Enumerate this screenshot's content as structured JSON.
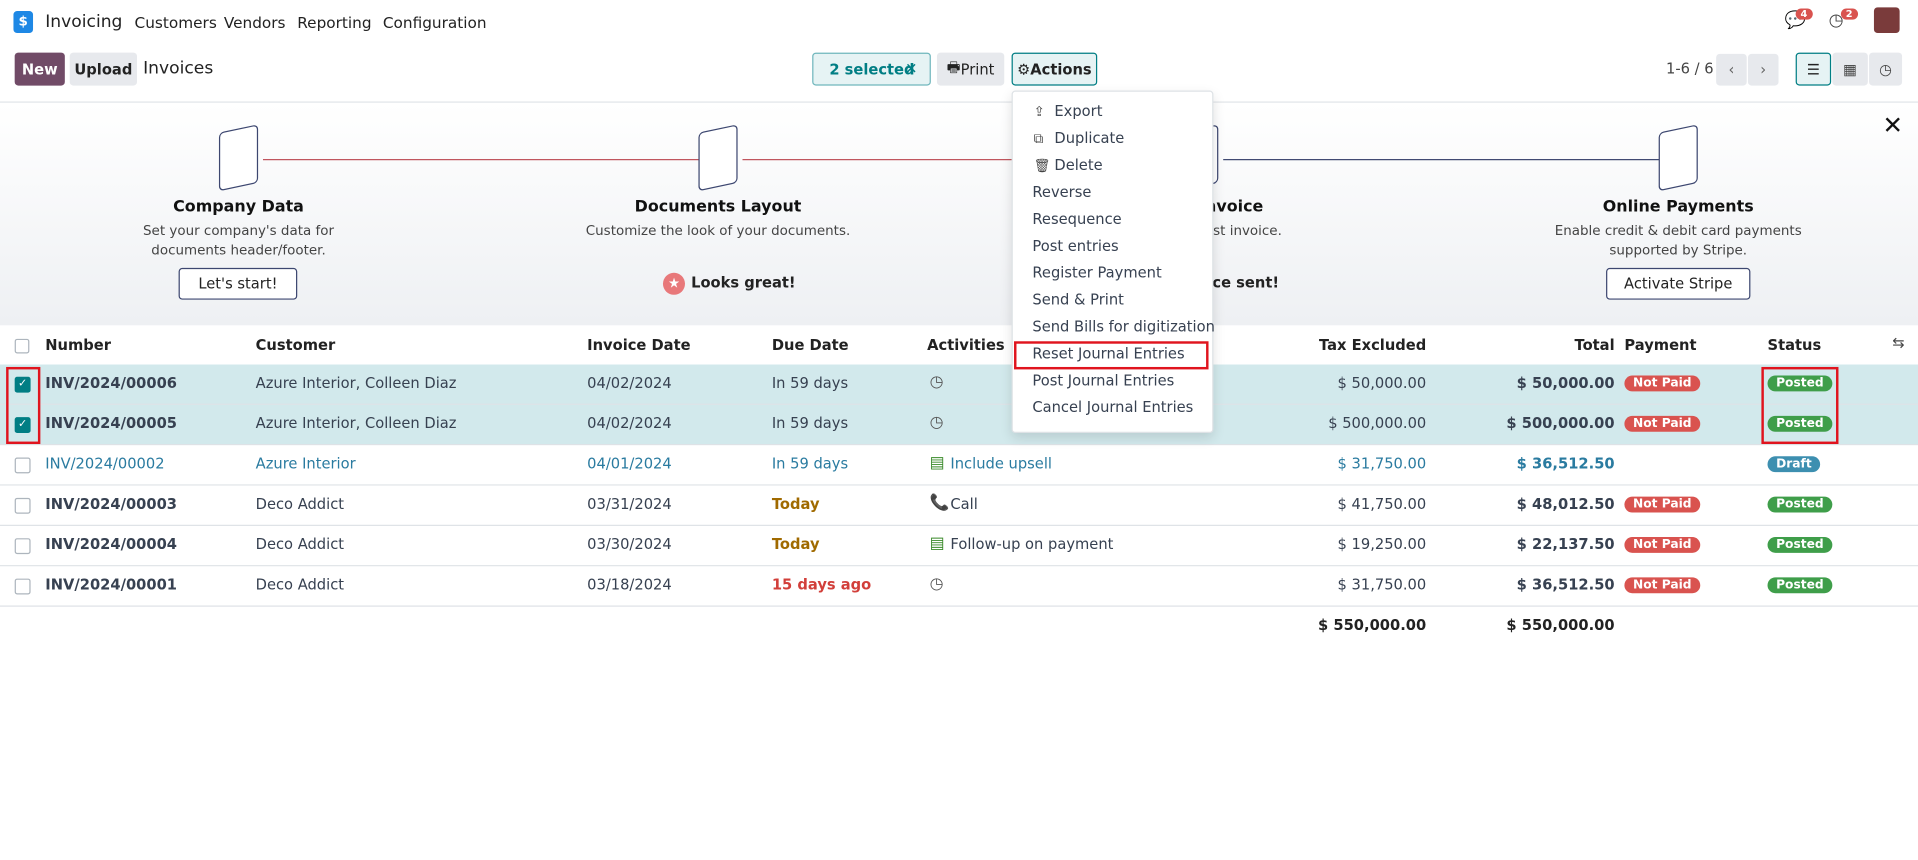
{
  "navbar": {
    "app": "Invoicing",
    "menus": [
      "Customers",
      "Vendors",
      "Reporting",
      "Configuration"
    ],
    "chat_badge": "4",
    "activity_badge": "2"
  },
  "control": {
    "new": "New",
    "upload": "Upload",
    "breadcrumb": "Invoices",
    "selected": "2 selected",
    "print": "Print",
    "actions": "Actions",
    "pager": "1-6 / 6"
  },
  "actions_menu": {
    "items": [
      "Export",
      "Duplicate",
      "Delete",
      "Reverse",
      "Resequence",
      "Post entries",
      "Register Payment",
      "Send & Print",
      "Send Bills for digitization",
      "Reset Journal Entries",
      "Post Journal Entries",
      "Cancel Journal Entries"
    ],
    "icons": [
      "upload",
      "copy",
      "trash"
    ],
    "highlighted": 9
  },
  "onboarding": {
    "steps": [
      {
        "title": "Company Data",
        "description": "Set your company's data for documents header/footer.",
        "button": "Let's start!"
      },
      {
        "title": "Documents Layout",
        "description": "Customize the look of your documents.",
        "status": "Looks great!"
      },
      {
        "title": "Create Invoice",
        "description": "Create your first invoice.",
        "status": "Invoice sent!"
      },
      {
        "title": "Online Payments",
        "description": "Enable credit & debit card payments supported by Stripe.",
        "button": "Activate Stripe"
      }
    ]
  },
  "table": {
    "columns": [
      "Number",
      "Customer",
      "Invoice Date",
      "Due Date",
      "Activities",
      "Tax Excluded",
      "Total",
      "Payment",
      "Status"
    ],
    "rows": [
      {
        "selected": true,
        "activity_icon": "clock",
        "cells": [
          "INV/2024/00006",
          "Azure Interior, Colleen Diaz",
          "04/02/2024",
          "In 59 days",
          null,
          "$ 50,000.00",
          "$ 50,000.00",
          "Not Paid",
          "Posted"
        ]
      },
      {
        "selected": true,
        "activity_icon": "clock",
        "cells": [
          "INV/2024/00005",
          "Azure Interior, Colleen Diaz",
          "04/02/2024",
          "In 59 days",
          null,
          "$ 500,000.00",
          "$ 500,000.00",
          "Not Paid",
          "Posted"
        ]
      },
      {
        "selected": false,
        "draft": true,
        "activity_icon": "upsell",
        "cells": [
          "INV/2024/00002",
          "Azure Interior",
          "04/01/2024",
          "In 59 days",
          "Include upsell",
          "$ 31,750.00",
          "$ 36,512.50",
          null,
          "Draft"
        ]
      },
      {
        "selected": false,
        "activity_icon": "phone",
        "due_color": "#a06a00",
        "cells": [
          "INV/2024/00003",
          "Deco Addict",
          "03/31/2024",
          "Today",
          "Call",
          "$ 41,750.00",
          "$ 48,012.50",
          "Not Paid",
          "Posted"
        ]
      },
      {
        "selected": false,
        "activity_icon": "upsell",
        "due_color": "#a06a00",
        "cells": [
          "INV/2024/00004",
          "Deco Addict",
          "03/30/2024",
          "Today",
          "Follow-up on payment",
          "$ 19,250.00",
          "$ 22,137.50",
          "Not Paid",
          "Posted"
        ]
      },
      {
        "selected": false,
        "activity_icon": "clock",
        "due_color": "#d23f3a",
        "cells": [
          "INV/2024/00001",
          "Deco Addict",
          "03/18/2024",
          "15 days ago",
          null,
          "$ 31,750.00",
          "$ 36,512.50",
          "Not Paid",
          "Posted"
        ]
      }
    ],
    "totals": {
      "tax_excluded": "$ 550,000.00",
      "total": "$ 550,000.00"
    }
  }
}
